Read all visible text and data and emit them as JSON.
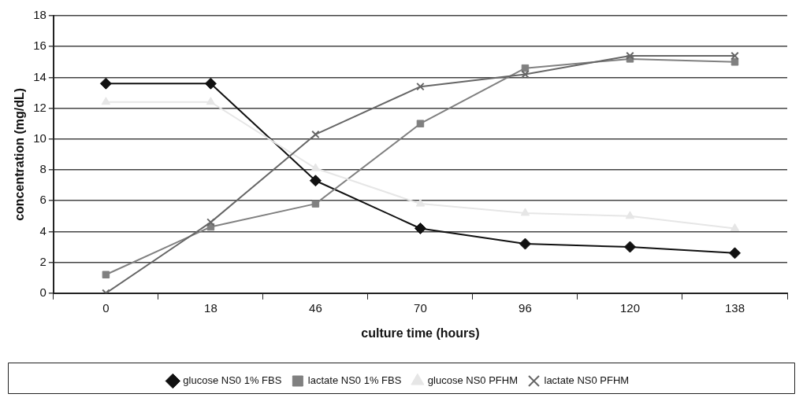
{
  "chart_data": {
    "type": "line",
    "xlabel": "culture time (hours)",
    "ylabel": "concentration (mg/dL)",
    "categories": [
      "0",
      "18",
      "46",
      "70",
      "96",
      "120",
      "138"
    ],
    "ylim": [
      0,
      18
    ],
    "yticks": [
      0,
      2,
      4,
      6,
      8,
      10,
      12,
      14,
      16,
      18
    ],
    "grid": "y",
    "legend": "bottom",
    "series": [
      {
        "name": "glucose NS0 1% FBS",
        "color": "#111111",
        "marker": "diamond",
        "values": [
          13.6,
          13.6,
          7.3,
          4.2,
          3.2,
          3.0,
          2.6
        ]
      },
      {
        "name": "lactate NS0 1% FBS",
        "color": "#808080",
        "marker": "square",
        "values": [
          1.2,
          4.3,
          5.8,
          11.0,
          14.6,
          15.2,
          15.0
        ]
      },
      {
        "name": "glucose NS0 PFHM",
        "color": "#e6e6e6",
        "marker": "triangle",
        "values": [
          12.4,
          12.4,
          8.1,
          5.8,
          5.2,
          5.0,
          4.2
        ]
      },
      {
        "name": "lactate NS0 PFHM",
        "color": "#666666",
        "marker": "cross",
        "values": [
          0,
          4.6,
          10.3,
          13.4,
          14.2,
          15.4,
          15.4
        ]
      }
    ]
  }
}
